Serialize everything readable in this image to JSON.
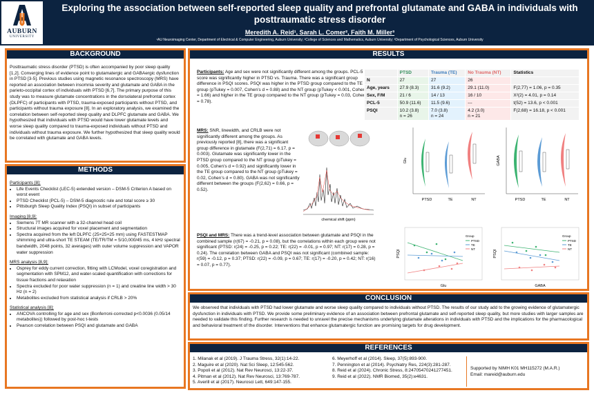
{
  "header": {
    "logo_word": "AUBURN",
    "logo_sub": "UNIVERSITY",
    "title": "Exploring the association between self-reported sleep quality and prefrontal glutamate and GABA in individuals with posttraumatic stress disorder",
    "authors": "Meredith A. Reid¹, Sarah L. Comer², Faith M. Miller³",
    "affiliations": "¹AU Neuroimaging Center, Department of Electrical & Computer Engineering, Auburn University; ²College of Sciences and Mathematics, Auburn University; ³Department of Psychological Sciences, Auburn University"
  },
  "background": {
    "heading": "BACKGROUND",
    "text": "Posttraumatic stress disorder (PTSD) is often accompanied by poor sleep quality [1,2]. Converging lines of evidence point to glutamatergic and GABAergic dysfunction in PTSD [3-5]. Previous studies using magnetic resonance spectroscopy (MRS) have reported an association between insomnia severity and glutamate and GABA in the parieto-occipital cortex of individuals with PTSD [6,7]. The primary purpose of this study was to measure glutamate concentrations in the dorsolateral prefrontal cortex (DLPFC) of participants with PTSD, trauma-exposed participants without PTSD, and participants without trauma exposure [8]. In an exploratory analysis, we examined the correlation between self-reported sleep quality and DLPFC glutamate and GABA. We hypothesized that individuals with PTSD would have lower glutamate levels and worse sleep quality compared to trauma-exposed individuals without PTSD and individuals without trauma exposure. We further hypothesized that sleep quality would be correlated with glutamate and GABA levels."
  },
  "methods": {
    "heading": "METHODS",
    "participants_h": "Participants [8]:",
    "participants": [
      "Life Events Checklist (LEC-5) extended version – DSM-5 Criterion A based on worst event",
      "PTSD Checklist (PCL-5) – DSM-5 diagnostic rule and total score ≥ 30",
      "Pittsburgh Sleep Quality Index (PSQI) in subset of participants"
    ],
    "imaging_h": "Imaging [8,9]:",
    "imaging": [
      "Siemens 7T MR scanner with a 32-channel head coil",
      "Structural images acquired for voxel placement and segmentation",
      "Spectra acquired from the left DLPFC (25×25×25 mm) using FASTESTMAP shimming and ultra-short TE STEAM (TE/TR/TM = 5/10,000/45 ms, 4 kHz spectral bandwidth, 2048 points, 32 averages) with outer volume suppression and VAPOR water suppression"
    ],
    "mrs_h": "MRS analysis [8,9]:",
    "mrs": [
      "Osprey for eddy current correction, fitting with LCModel, voxel coregistration and segmentation with SPM12, and water-scaled quantification with corrections for tissue fractions and relaxation",
      "Spectra excluded for poor water suppression (n = 1) and creatine line width > 30 Hz (n = 2)",
      "Metabolites excluded from statistical analysis if CRLB > 20%"
    ],
    "stats_h": "Statistical analysis [8]:",
    "stats": [
      "ANCOVA controlling for age and sex (Bonferroni-corrected p<0.0036 (0.05/14 metabolites)) followed by post-hoc t-tests",
      "Pearson correlation between PSQI and glutamate and GABA"
    ]
  },
  "results": {
    "heading": "RESULTS",
    "participants_label": "Participants:",
    "participants_text": " Age and sex were not significantly different among the groups. PCL-5 total score was significantly higher in PTSD vs. Trauma. There was a significant group difference in PSQI scores. PSQI was higher in the PTSD group compared to the TE group (pTukey = 0.007, Cohen’s d = 0.88) and the NT group (pTukey < 0.001, Cohen’s d = 1.66) and higher in the TE group compared to the NT group (pTukey = 0.03, Cohen’s d = 0.78).",
    "mrs_label": "MRS:",
    "mrs_text": " SNR, linewidth, and CRLB were not significantly different among the groups. As previously reported [8], there was a significant group difference in glutamate (F(2,71) = 6.17, p = 0.003). Glutamate was significantly lower in the PTSD group compared to the NT group (pTukey = 0.005, Cohen’s d = 0.92) and significantly lower in the TE group compared to the NT group (pTukey = 0.02, Cohen’s d = 0.80). GABA was not significantly different between the groups (F(2,62) = 0.66, p = 0.52).",
    "corr_label": "PSQI and MRS:",
    "corr_text": " There was a trend-level association between glutamate and PSQI in the combined sample (r(67) = -0.21, p = 0.08), but the correlations within each group were not significant (PTSD: r(24) = -0.25, p = 0.22; TE: r(22) = -0.01, p = 0.97; NT: r(17) = 0.28, p = 0.24). The correlation between GABA and PSQI was not significant (combined sample: r(59) = -0.12, p = 0.37; PTSD: r(22) = -0.09, p = 0.67; TE: r(17) = -0.20, p = 0.42; NT: r(16) = 0.07, p = 0.77).",
    "table": {
      "headers": [
        "",
        "PTSD",
        "Trauma (TE)",
        "No Trauma (NT)",
        "Statistics"
      ],
      "rows": [
        [
          "N",
          "27",
          "27",
          "26",
          ""
        ],
        [
          "Age, years",
          "27.9 (8.3)",
          "31.6 (9.2)",
          "29.1 (11.0)",
          "F(2,77) = 1.06, p = 0.35"
        ],
        [
          "Sex, F/M",
          "21 / 6",
          "14 / 13",
          "16 / 10",
          "X²(2) = 4.01, p = 0.14"
        ],
        [
          "PCL-5",
          "50.9 (11.6)",
          "11.5 (9.6)",
          "---",
          "t(52) = 13.6, p < 0.001"
        ],
        [
          "PSQI",
          "10.2 (3.8)\nn = 26",
          "7.0 (3.8)\nn = 24",
          "4.2 (3.0)\nn = 21",
          "F(2,68) = 16.18, p < 0.001"
        ]
      ]
    },
    "fig_labels": {
      "spectrum_xlabel": "chemical shift (ppm)",
      "glu_ylabel": "Glu",
      "gaba_ylabel": "GABA",
      "groups": [
        "PTSD",
        "TE",
        "NT"
      ],
      "scatter_ylabel": "PSQI",
      "scatter1_xlabel": "Glu",
      "scatter2_xlabel": "GABA",
      "legend_title": "Group",
      "legend_items": [
        "PTSD",
        "TE",
        "NT"
      ]
    }
  },
  "conclusion": {
    "heading": "CONCLUSION",
    "text": "We observed that individuals with PTSD had lower glutamate and worse sleep quality compared to individuals without PTSD. The results of our study add to the growing evidence of glutamatergic dysfunction in individuals with PTSD. We provide some preliminary evidence of an association between prefrontal glutamate and self-reported sleep quality, but more studies with larger samples are needed to validate this finding. Further research is needed to unravel the precise mechanisms underlying glutamate alterations in individuals with PTSD and the implications for the pharmacological and behavioral treatment of the disorder. Interventions that enhance glutamatergic function are promising targets for drug development."
  },
  "references": {
    "heading": "REFERENCES",
    "col1": [
      "1. Milanak et al (2019). J Trauma Stress, 32(1):14-22.",
      "2. Maguire et al (2020). Nat Sci Sleep, 12:545-562.",
      "3. Popoli et al (2012). Nat Rev Neurosci, 13:22-37.",
      "4. Pitman et al (2012). Nat Rev Neurosci, 13:769-787.",
      "5. Averill et al (2017). Neurosci Lett, 649:147-155."
    ],
    "col2": [
      "6. Meyerhoff et al (2014). Sleep, 37(5):893-900.",
      "7. Pennington et al (2014). Psychiatry Res, 224(3):281-287.",
      "8. Reid et al (2024). Chronic Stress, 8:24705470241277451.",
      "9. Reid et al (2022). NMR Biomed, 35(2):e4631."
    ],
    "support": "Supported by NIMH K01 MH115272 (M.A.R.)",
    "email": "Email: mareid@auburn.edu"
  },
  "colors": {
    "navy": "#0c2340",
    "orange": "#e87722",
    "ptsd": "#3cb371",
    "te": "#5b9bd5",
    "nt": "#f08080"
  }
}
